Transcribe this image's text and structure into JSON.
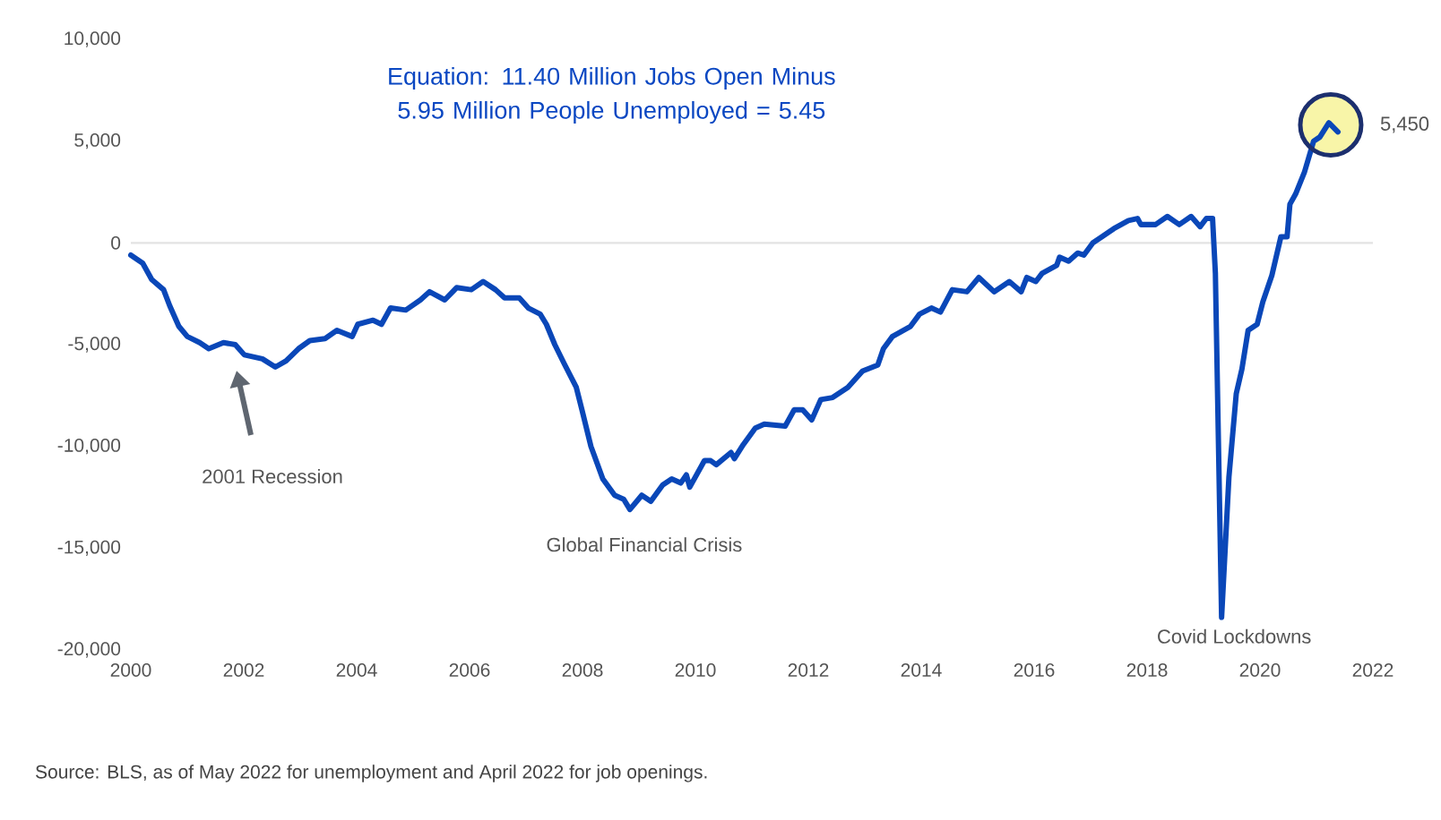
{
  "chart_data": {
    "type": "line",
    "title": "Equation: 11.40 Million Jobs Open Minus 5.95 Million People Unemployed = 5.45",
    "x": [
      2000.0,
      2000.21,
      2000.37,
      2000.58,
      2000.69,
      2000.85,
      2001.0,
      2001.22,
      2001.38,
      2001.64,
      2001.85,
      2002.01,
      2002.33,
      2002.56,
      2002.75,
      2002.97,
      2003.17,
      2003.44,
      2003.65,
      2003.92,
      2004.02,
      2004.29,
      2004.44,
      2004.6,
      2004.87,
      2005.13,
      2005.29,
      2005.56,
      2005.77,
      2006.03,
      2006.24,
      2006.46,
      2006.62,
      2006.88,
      2007.04,
      2007.25,
      2007.36,
      2007.51,
      2007.67,
      2007.89,
      2007.99,
      2008.15,
      2008.36,
      2008.57,
      2008.73,
      2008.84,
      2009.05,
      2009.21,
      2009.42,
      2009.58,
      2009.74,
      2009.84,
      2009.9,
      2010.16,
      2010.27,
      2010.37,
      2010.63,
      2010.69,
      2010.85,
      2011.06,
      2011.22,
      2011.59,
      2011.75,
      2011.9,
      2012.06,
      2012.22,
      2012.43,
      2012.7,
      2012.96,
      2013.23,
      2013.33,
      2013.49,
      2013.81,
      2013.97,
      2014.18,
      2014.34,
      2014.55,
      2014.81,
      2015.02,
      2015.29,
      2015.56,
      2015.77,
      2015.87,
      2016.03,
      2016.14,
      2016.4,
      2016.45,
      2016.61,
      2016.77,
      2016.88,
      2017.04,
      2017.2,
      2017.41,
      2017.67,
      2017.83,
      2017.89,
      2018.15,
      2018.36,
      2018.57,
      2018.78,
      2018.94,
      2019.05,
      2019.16,
      2019.21,
      2019.32,
      2019.45,
      2019.58,
      2019.68,
      2019.79,
      2019.95,
      2020.05,
      2020.21,
      2020.37,
      2020.48,
      2020.53,
      2020.63,
      2020.79,
      2020.95,
      2021.06,
      2021.22,
      2021.38
    ],
    "series": [
      {
        "color": "#0a47b8",
        "values": [
          -600,
          -1000,
          -1800,
          -2300,
          -3100,
          -4100,
          -4600,
          -4900,
          -5200,
          -4900,
          -5000,
          -5500,
          -5700,
          -6100,
          -5800,
          -5200,
          -4800,
          -4700,
          -4300,
          -4600,
          -4000,
          -3800,
          -4000,
          -3200,
          -3300,
          -2800,
          -2400,
          -2800,
          -2200,
          -2300,
          -1900,
          -2300,
          -2700,
          -2700,
          -3200,
          -3500,
          -4000,
          -5000,
          -5900,
          -7100,
          -8200,
          -10000,
          -11600,
          -12400,
          -12600,
          -13100,
          -12400,
          -12700,
          -11900,
          -11600,
          -11800,
          -11400,
          -12000,
          -10700,
          -10700,
          -10900,
          -10300,
          -10600,
          -9900,
          -9100,
          -8900,
          -9000,
          -8200,
          -8200,
          -8700,
          -7700,
          -7600,
          -7100,
          -6300,
          -6000,
          -5200,
          -4600,
          -4100,
          -3500,
          -3200,
          -3400,
          -2300,
          -2400,
          -1700,
          -2400,
          -1900,
          -2400,
          -1700,
          -1900,
          -1500,
          -1100,
          -700,
          -900,
          -500,
          -600,
          0,
          300,
          700,
          1100,
          1200,
          900,
          900,
          1300,
          900,
          1300,
          800,
          1200,
          1200,
          -1500,
          -18400,
          -11500,
          -7400,
          -6200,
          -4300,
          -4000,
          -2900,
          -1600,
          300,
          300,
          1900,
          2400,
          3500,
          5000,
          5200,
          5900,
          5450
        ]
      }
    ],
    "xlim": [
      2000,
      2022
    ],
    "ylim": [
      -20000,
      10000
    ],
    "xticks": [
      2000,
      2002,
      2004,
      2006,
      2008,
      2010,
      2012,
      2014,
      2016,
      2018,
      2020,
      2022
    ],
    "yticks": [
      {
        "value": -20000,
        "label": "-20,000"
      },
      {
        "value": -15000,
        "label": "-15,000"
      },
      {
        "value": -10000,
        "label": "-10,000"
      },
      {
        "value": -5000,
        "label": "-5,000"
      },
      0,
      {
        "value": 5000,
        "label": "5,000"
      },
      {
        "value": 10000,
        "label": "10,000"
      }
    ],
    "ref_lines": [
      {
        "axis": "y",
        "value": 0,
        "color": "#e3e3e3"
      }
    ],
    "annotations": [
      "2001 Recession",
      {
        "text": "Global Financial Crisis",
        "x": 2008.84,
        "y": -13100
      },
      {
        "text": "Covid Lockdowns",
        "x": 2019.32,
        "y": -18400
      },
      {
        "text": "5,450",
        "x": 2021.38,
        "y": 5450
      },
      "Source: BLS, as of May 2022 for unemployment and April 2022 for job openings."
    ]
  }
}
